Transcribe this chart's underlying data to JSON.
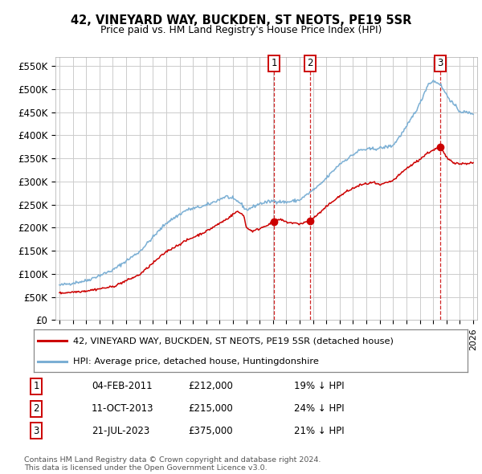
{
  "title": "42, VINEYARD WAY, BUCKDEN, ST NEOTS, PE19 5SR",
  "subtitle": "Price paid vs. HM Land Registry's House Price Index (HPI)",
  "ylim": [
    0,
    570000
  ],
  "yticks": [
    0,
    50000,
    100000,
    150000,
    200000,
    250000,
    300000,
    350000,
    400000,
    450000,
    500000,
    550000
  ],
  "hpi_color": "#7bafd4",
  "price_color": "#cc0000",
  "sale_color": "#cc0000",
  "vline_color": "#cc0000",
  "grid_color": "#cccccc",
  "sale_points": [
    {
      "date_num": 2011.09,
      "price": 212000,
      "label": "1"
    },
    {
      "date_num": 2013.78,
      "price": 215000,
      "label": "2"
    },
    {
      "date_num": 2023.55,
      "price": 375000,
      "label": "3"
    }
  ],
  "legend_entries": [
    {
      "label": "42, VINEYARD WAY, BUCKDEN, ST NEOTS, PE19 5SR (detached house)",
      "color": "#cc0000"
    },
    {
      "label": "HPI: Average price, detached house, Huntingdonshire",
      "color": "#7bafd4"
    }
  ],
  "table_rows": [
    {
      "num": "1",
      "date": "04-FEB-2011",
      "price": "£212,000",
      "pct": "19% ↓ HPI"
    },
    {
      "num": "2",
      "date": "11-OCT-2013",
      "price": "£215,000",
      "pct": "24% ↓ HPI"
    },
    {
      "num": "3",
      "date": "21-JUL-2023",
      "price": "£375,000",
      "pct": "21% ↓ HPI"
    }
  ],
  "footnote": "Contains HM Land Registry data © Crown copyright and database right 2024.\nThis data is licensed under the Open Government Licence v3.0.",
  "bg_color": "#ffffff"
}
